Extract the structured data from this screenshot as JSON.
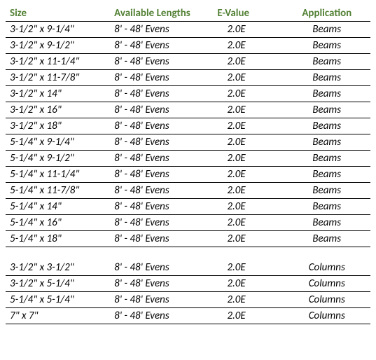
{
  "table": {
    "header_color": "#538135",
    "columns": [
      "Size",
      "Available Lengths",
      "E-Value",
      "Application"
    ],
    "rows": [
      [
        "3-1/2\" x 9-1/4\"",
        "8' - 48' Evens",
        "2.0E",
        "Beams"
      ],
      [
        "3-1/2\" x 9-1/2\"",
        "8' - 48' Evens",
        "2.0E",
        "Beams"
      ],
      [
        "3-1/2\" x 11-1/4\"",
        "8' - 48' Evens",
        "2.0E",
        "Beams"
      ],
      [
        "3-1/2\" x 11-7/8\"",
        "8' - 48' Evens",
        "2.0E",
        "Beams"
      ],
      [
        "3-1/2\" x 14\"",
        "8' - 48' Evens",
        "2.0E",
        "Beams"
      ],
      [
        "3-1/2\" x 16\"",
        "8' - 48' Evens",
        "2.0E",
        "Beams"
      ],
      [
        "3-1/2\" x 18\"",
        "8' - 48' Evens",
        "2.0E",
        "Beams"
      ],
      [
        "5-1/4\" x 9-1/4\"",
        "8' - 48' Evens",
        "2.0E",
        "Beams"
      ],
      [
        "5-1/4\" x 9-1/2\"",
        "8' - 48' Evens",
        "2.0E",
        "Beams"
      ],
      [
        "5-1/4\" x 11-1/4\"",
        "8' - 48' Evens",
        "2.0E",
        "Beams"
      ],
      [
        "5-1/4\" x 11-7/8\"",
        "8' - 48' Evens",
        "2.0E",
        "Beams"
      ],
      [
        "5-1/4\" x 14\"",
        "8' - 48' Evens",
        "2.0E",
        "Beams"
      ],
      [
        "5-1/4\" x 16\"",
        "8' - 48' Evens",
        "2.0E",
        "Beams"
      ],
      [
        "5-1/4\" x 18\"",
        "8' - 48' Evens",
        "2.0E",
        "Beams"
      ]
    ],
    "rows2": [
      [
        "3-1/2\" x 3-1/2\"",
        "8' - 48' Evens",
        "2.0E",
        "Columns"
      ],
      [
        "3-1/2\" x 5-1/4\"",
        "8' - 48' Evens",
        "2.0E",
        "Columns"
      ],
      [
        "5-1/4\" x 5-1/4\"",
        "8' - 48' Evens",
        "2.0E",
        "Columns"
      ],
      [
        "7\" x 7\"",
        "8' - 48' Evens",
        "2.0E",
        "Columns"
      ]
    ]
  }
}
